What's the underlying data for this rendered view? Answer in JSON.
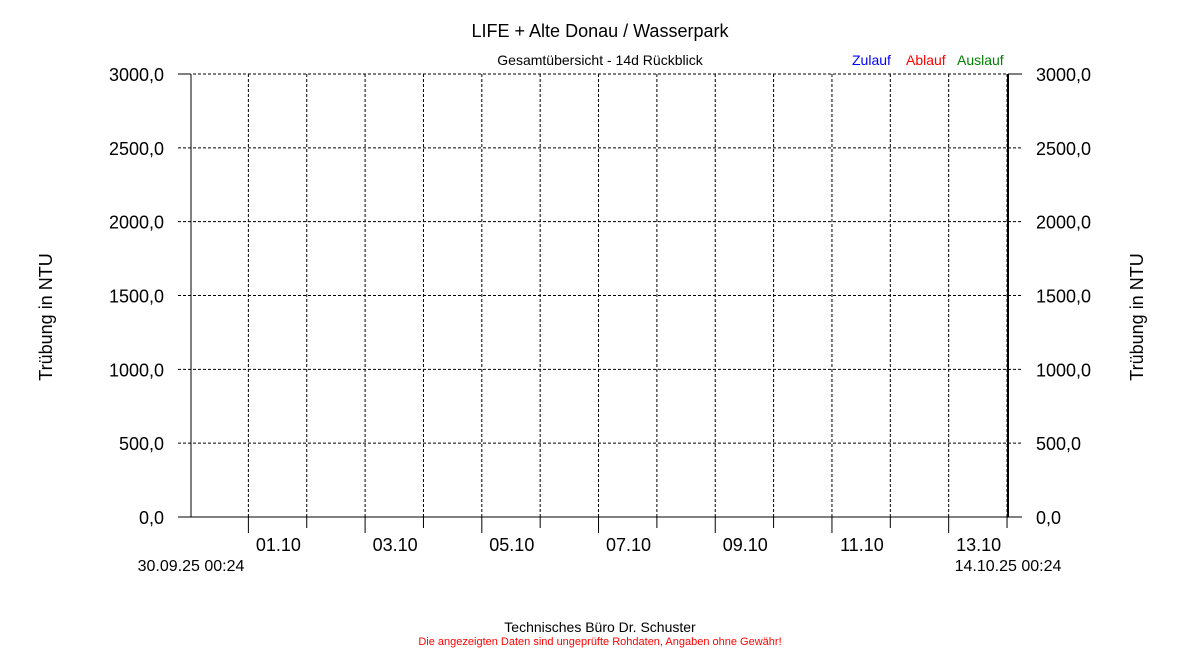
{
  "chart_data": {
    "type": "line",
    "title": "LIFE + Alte Donau / Wasserpark",
    "subtitle": "Gesamtübersicht - 14d Rückblick",
    "ylabel_left": "Trübung in NTU",
    "ylabel_right": "Trübung in NTU",
    "ylim": [
      0,
      3000
    ],
    "yticks": [
      "0,0",
      "500,0",
      "1000,0",
      "1500,0",
      "2000,0",
      "2500,0",
      "3000,0"
    ],
    "ytick_values": [
      0,
      500,
      1000,
      1500,
      2000,
      2500,
      3000
    ],
    "x_start_label": "30.09.25 00:24",
    "x_end_label": "14.10.25 00:24",
    "x_days": 14,
    "x_first_midnight_offset_hours": 23.6,
    "xtick_labels": [
      "01.10",
      "03.10",
      "05.10",
      "07.10",
      "09.10",
      "11.10",
      "13.10"
    ],
    "grid": true,
    "legend_placement": "top-right",
    "series": [
      {
        "name": "Zulauf",
        "color": "#0000ff",
        "values": []
      },
      {
        "name": "Ablauf",
        "color": "#ff0000",
        "values": []
      },
      {
        "name": "Auslauf",
        "color": "#008000",
        "values": []
      }
    ]
  },
  "footer": {
    "company": "Technisches Büro Dr. Schuster",
    "disclaimer": "Die angezeigten Daten sind ungeprüfte Rohdaten, Angaben ohne Gewähr!",
    "disclaimer_color": "#ff0000"
  }
}
